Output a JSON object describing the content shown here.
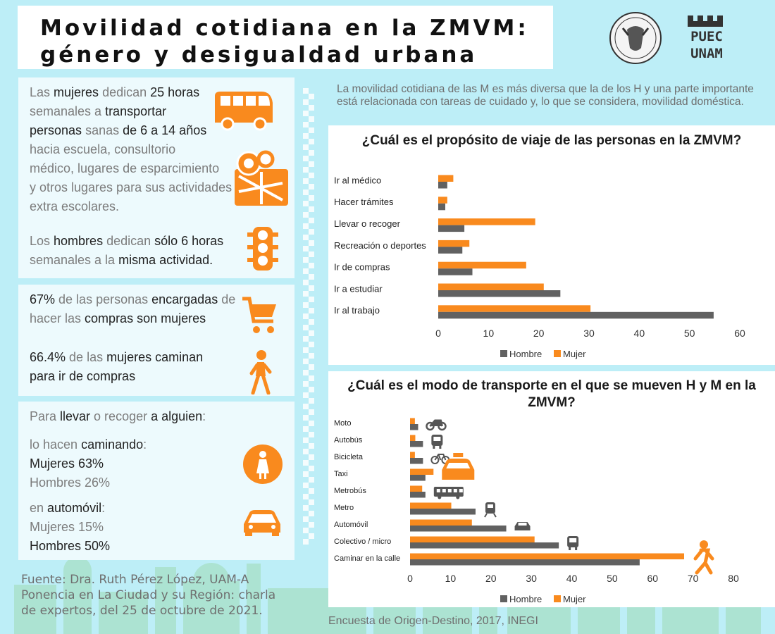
{
  "header": {
    "title_line1": "Movilidad cotidiana en la ZMVM:",
    "title_line2": "género y desigualdad urbana",
    "logo_text": "PUEC UNAM"
  },
  "colors": {
    "mujer": "#f98a1e",
    "hombre": "#616161",
    "background": "#bdeef7",
    "icon": "#f98a1e"
  },
  "panel1": {
    "line1": [
      "Las ",
      "mujeres",
      " dedican ",
      "25 horas"
    ],
    "line2": [
      "semanales a ",
      "transportar"
    ],
    "line3": [
      "personas",
      " sanas ",
      "de 6 a 14 años"
    ],
    "line4": "hacia escuela, consultorio",
    "line5": "médico, lugares de esparcimiento",
    "line6": "y otros lugares para sus actividades",
    "line7": "extra escolares.",
    "line8": [
      "Los ",
      "hombres",
      " dedican ",
      "sólo 6 horas"
    ],
    "line9": [
      "semanales a la ",
      "misma actividad."
    ],
    "icons": [
      "bus-icon",
      "map-pin-icon",
      "traffic-light-icon"
    ]
  },
  "panel2": {
    "line1": [
      "67%",
      " de las personas ",
      "encargadas",
      " de"
    ],
    "line2": [
      "hacer las ",
      "compras son mujeres"
    ],
    "line3": [
      "66.4%",
      " de las ",
      "mujeres",
      " caminan"
    ],
    "line4": "para ir de compras",
    "icons": [
      "shopping-cart-icon",
      "walking-woman-icon"
    ]
  },
  "panel3": {
    "line1": [
      "Para ",
      "llevar",
      " o recoger ",
      "a alguien",
      ":"
    ],
    "line2": [
      "lo hacen ",
      "caminando",
      ":"
    ],
    "line3": "Mujeres 63%",
    "line4": "Hombres  26%",
    "line5": [
      "en ",
      "automóvil",
      ":"
    ],
    "line6": "Mujeres  15%",
    "line7": "Hombres   50%",
    "icons": [
      "woman-icon",
      "car-icon"
    ]
  },
  "intro": "La movilidad cotidiana de las M es más diversa que la de los H y una parte importante está relacionada con tareas de cuidado y, lo que se considera, movilidad doméstica.",
  "footer": {
    "source": "Fuente:  Dra. Ruth Pérez López, UAM-A Ponencia en La Ciudad y su Región: charla de expertos, del 25 de octubre de 2021.",
    "survey": "Encuesta de Origen-Destino, 2017, INEGI"
  },
  "chart_data": [
    {
      "type": "bar",
      "orientation": "horizontal",
      "title": "¿Cuál es el propósito de viaje de las personas en la ZMVM?",
      "categories": [
        "Ir al médico",
        "Hacer trámites",
        "Llevar o recoger",
        "Recreación o deportes",
        "Ir de compras",
        "Ir a estudiar",
        "Ir al trabajo"
      ],
      "series": [
        {
          "name": "Mujer",
          "values": [
            3,
            1.8,
            19.3,
            6.2,
            17.5,
            21,
            30.3
          ]
        },
        {
          "name": "Hombre",
          "values": [
            1.8,
            1.4,
            5.2,
            4.8,
            6.8,
            24.3,
            54.8
          ]
        }
      ],
      "xlim": [
        0,
        60
      ],
      "xticks": [
        0,
        10,
        20,
        30,
        40,
        50,
        60
      ],
      "legend": [
        "Hombre",
        "Mujer"
      ],
      "legend_position": "bottom",
      "grid": false
    },
    {
      "type": "bar",
      "orientation": "horizontal",
      "title": "¿Cuál es el modo de transporte en el que se mueven H y M en la ZMVM?",
      "categories": [
        "Moto",
        "Autobús",
        "Bicicleta",
        "Taxi",
        "Metrobús",
        "Metro",
        "Automóvil",
        "Colectivo / micro",
        "Caminar en la calle"
      ],
      "series": [
        {
          "name": "Mujer",
          "values": [
            1.2,
            1.3,
            1.2,
            5.8,
            3,
            10.2,
            15.3,
            30.8,
            67.8
          ]
        },
        {
          "name": "Hombre",
          "values": [
            2,
            3.2,
            3.2,
            3.8,
            3.8,
            16.2,
            23.8,
            36.8,
            56.8
          ]
        }
      ],
      "icons": [
        "motorcycle-icon",
        "bus-icon",
        "bicycle-icon",
        "taxi-icon",
        "metrobus-icon",
        "metro-train-icon",
        "car-icon",
        "colectivo-bus-icon",
        "walking-person-icon"
      ],
      "xlim": [
        0,
        80
      ],
      "xticks": [
        0,
        10,
        20,
        30,
        40,
        50,
        60,
        70,
        80
      ],
      "legend": [
        "Hombre",
        "Mujer"
      ],
      "legend_position": "bottom",
      "grid": false
    }
  ]
}
